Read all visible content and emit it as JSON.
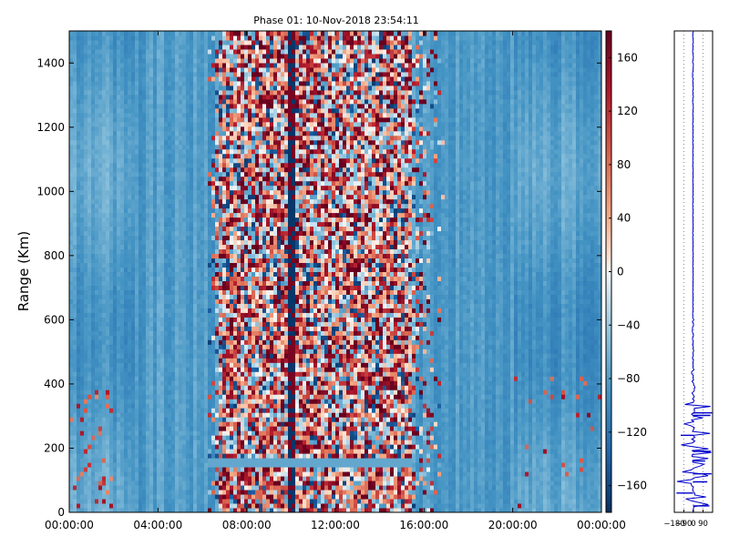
{
  "chart_data": [
    {
      "type": "heatmap",
      "title": "Phase 01: 10-Nov-2018 23:54:11",
      "xlabel": "",
      "ylabel": "Range (Km)",
      "x_tick_labels": [
        "00:00:00",
        "04:00:00",
        "08:00:00",
        "12:00:00",
        "16:00:00",
        "20:00:00",
        "00:00:00"
      ],
      "x_tick_hours": [
        0,
        4,
        8,
        12,
        16,
        20,
        24
      ],
      "xlim_hours": [
        0,
        24
      ],
      "y_ticks": [
        0,
        200,
        400,
        600,
        800,
        1000,
        1200,
        1400
      ],
      "ylim": [
        0,
        1500
      ],
      "colormap": "RdBu_r",
      "colorbar": {
        "ticks": [
          160,
          120,
          80,
          40,
          0,
          -40,
          -80,
          -120,
          -160
        ],
        "tick_labels": [
          "160",
          "120",
          "80",
          "40",
          "0",
          "−40",
          "−80",
          "−120",
          "−160"
        ],
        "range": [
          -180,
          180
        ]
      },
      "colors": {
        "low": "#053061",
        "mid": "#f7f7f7",
        "high": "#67001f",
        "typical_background": "#8fc2dd"
      },
      "features": {
        "noisy_band_hours": [
          7.0,
          15.5
        ],
        "strong_column_hour": 10.0,
        "horizontal_stripe_km": 150,
        "horizontal_stripe_hours": [
          6.3,
          15.5
        ]
      }
    },
    {
      "type": "line",
      "title": "",
      "x_tick_labels": [
        "−180",
        "−90",
        "0",
        "90"
      ],
      "x_ticks": [
        -180,
        -90,
        0,
        90
      ],
      "xlim": [
        -180,
        180
      ],
      "ylim": [
        0,
        1500
      ],
      "grid": "dotted-vertical",
      "series_color": "#0000cc"
    }
  ]
}
